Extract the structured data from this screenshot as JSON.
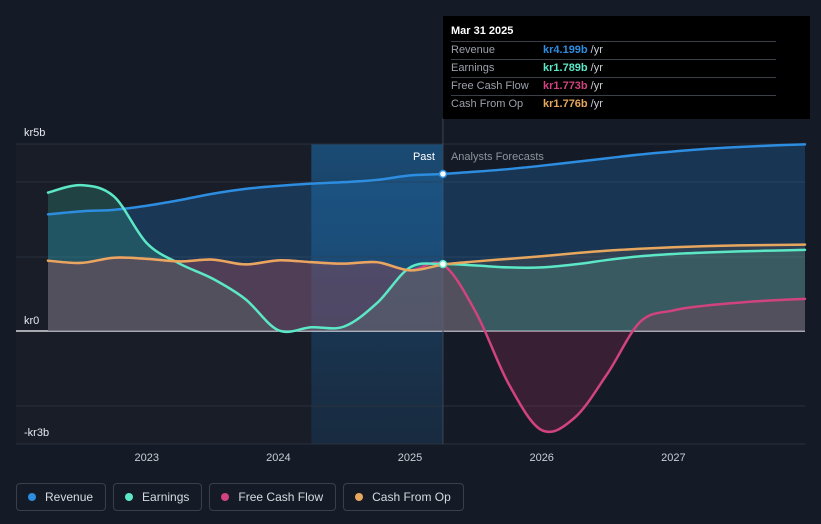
{
  "chart_data": {
    "type": "line",
    "y_axis": {
      "top_label": "kr5b",
      "zero_label": "kr0",
      "bottom_label": "-kr3b",
      "ylim": [
        -3.0,
        5.0
      ]
    },
    "x_axis": {
      "tick_labels": [
        "2023",
        "2024",
        "2025",
        "2026",
        "2027"
      ],
      "ticks": [
        2023,
        2024,
        2025,
        2026,
        2027
      ],
      "xlim": [
        2022.25,
        2028.0
      ]
    },
    "past_label": "Past",
    "forecast_label": "Analysts Forecasts",
    "divider_x": 2025.25,
    "highlight_from_x": 2024.25,
    "series": [
      {
        "name": "Revenue",
        "color": "#2d8de0",
        "x": [
          2022.25,
          2022.5,
          2022.75,
          2023.0,
          2023.25,
          2023.5,
          2023.75,
          2024.0,
          2024.25,
          2024.5,
          2024.75,
          2025.0,
          2025.25,
          2025.5,
          2025.75,
          2026.0,
          2026.25,
          2026.5,
          2026.75,
          2027.0,
          2027.25,
          2027.5,
          2027.75,
          2028.0
        ],
        "y": [
          3.12,
          3.2,
          3.24,
          3.35,
          3.5,
          3.67,
          3.8,
          3.88,
          3.94,
          3.98,
          4.04,
          4.16,
          4.199,
          4.26,
          4.33,
          4.42,
          4.52,
          4.62,
          4.72,
          4.8,
          4.87,
          4.92,
          4.96,
          4.99
        ]
      },
      {
        "name": "Earnings",
        "color": "#5ce8c6",
        "x": [
          2022.25,
          2022.5,
          2022.75,
          2023.0,
          2023.25,
          2023.5,
          2023.75,
          2024.0,
          2024.25,
          2024.5,
          2024.75,
          2025.0,
          2025.25,
          2025.5,
          2025.75,
          2026.0,
          2026.25,
          2026.5,
          2026.75,
          2027.0,
          2027.25,
          2027.5,
          2027.75,
          2028.0
        ],
        "y": [
          3.7,
          3.9,
          3.6,
          2.35,
          1.8,
          1.4,
          0.85,
          0.02,
          0.1,
          0.12,
          0.75,
          1.7,
          1.789,
          1.75,
          1.7,
          1.7,
          1.78,
          1.9,
          2.0,
          2.06,
          2.1,
          2.13,
          2.15,
          2.17
        ]
      },
      {
        "name": "Free Cash Flow",
        "color": "#d0437e",
        "x": [
          2022.25,
          2022.5,
          2022.75,
          2023.0,
          2023.25,
          2023.5,
          2023.75,
          2024.0,
          2024.25,
          2024.5,
          2024.75,
          2025.0,
          2025.25,
          2025.5,
          2025.75,
          2026.0,
          2026.25,
          2026.5,
          2026.75,
          2027.0,
          2027.25,
          2027.5,
          2027.75,
          2028.0
        ],
        "y": [
          1.88,
          1.82,
          1.96,
          1.93,
          1.86,
          1.91,
          1.78,
          1.89,
          1.84,
          1.8,
          1.84,
          1.62,
          1.773,
          0.5,
          -1.5,
          -2.8,
          -2.45,
          -1.2,
          0.25,
          0.55,
          0.68,
          0.76,
          0.82,
          0.86
        ]
      },
      {
        "name": "Cash From Op",
        "color": "#e8a75e",
        "x": [
          2022.25,
          2022.5,
          2022.75,
          2023.0,
          2023.25,
          2023.5,
          2023.75,
          2024.0,
          2024.25,
          2024.5,
          2024.75,
          2025.0,
          2025.25,
          2025.5,
          2025.75,
          2026.0,
          2026.25,
          2026.5,
          2026.75,
          2027.0,
          2027.25,
          2027.5,
          2027.75,
          2028.0
        ],
        "y": [
          1.88,
          1.82,
          1.96,
          1.93,
          1.86,
          1.91,
          1.78,
          1.89,
          1.84,
          1.8,
          1.84,
          1.62,
          1.776,
          1.86,
          1.93,
          2.0,
          2.08,
          2.15,
          2.2,
          2.24,
          2.27,
          2.29,
          2.3,
          2.31
        ]
      }
    ]
  },
  "tooltip": {
    "date": "Mar 31 2025",
    "rows": [
      {
        "label": "Revenue",
        "value": "kr4.199b",
        "unit": "/yr",
        "color": "#2d8de0"
      },
      {
        "label": "Earnings",
        "value": "kr1.789b",
        "unit": "/yr",
        "color": "#5ce8c6"
      },
      {
        "label": "Free Cash Flow",
        "value": "kr1.773b",
        "unit": "/yr",
        "color": "#d0437e"
      },
      {
        "label": "Cash From Op",
        "value": "kr1.776b",
        "unit": "/yr",
        "color": "#e8a75e"
      }
    ]
  },
  "legend": [
    {
      "label": "Revenue",
      "color": "#2d8de0"
    },
    {
      "label": "Earnings",
      "color": "#5ce8c6"
    },
    {
      "label": "Free Cash Flow",
      "color": "#d0437e"
    },
    {
      "label": "Cash From Op",
      "color": "#e8a75e"
    }
  ]
}
